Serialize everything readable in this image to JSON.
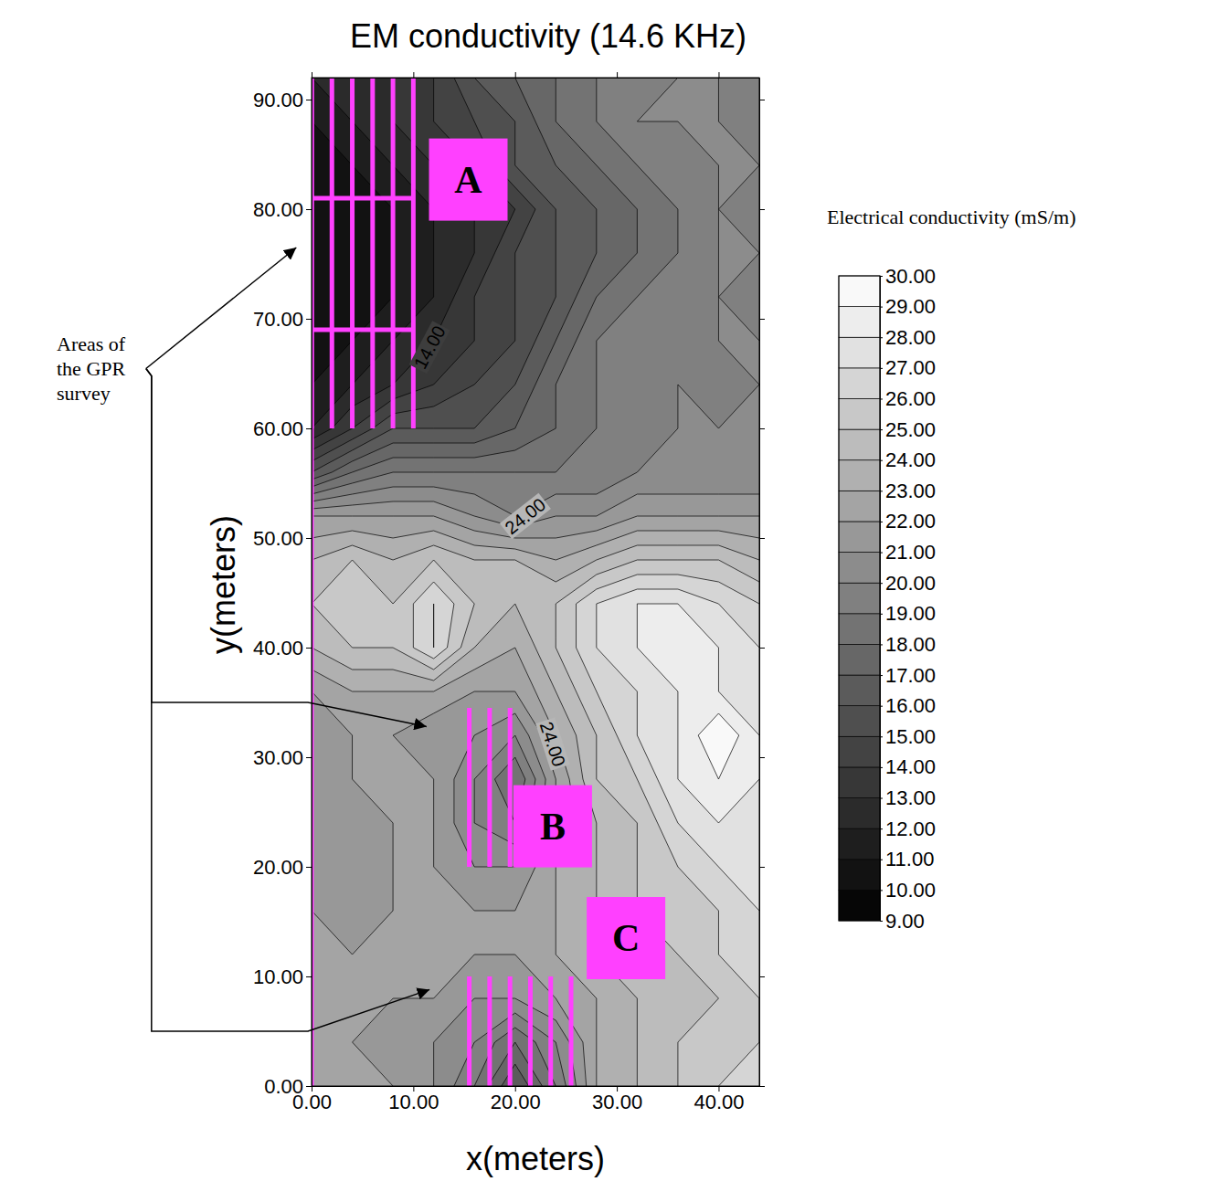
{
  "chart_data": {
    "type": "contour",
    "title": "EM conductivity (14.6 KHz)",
    "x_label": "x(meters)",
    "y_label": "y(meters)",
    "xlim": [
      0,
      44
    ],
    "ylim": [
      0,
      92
    ],
    "xticks": [
      {
        "value": 0,
        "label": "0.00"
      },
      {
        "value": 10,
        "label": "10.00"
      },
      {
        "value": 20,
        "label": "20.00"
      },
      {
        "value": 30,
        "label": "30.00"
      },
      {
        "value": 40,
        "label": "40.00"
      }
    ],
    "yticks": [
      {
        "value": 0,
        "label": "0.00"
      },
      {
        "value": 10,
        "label": "10.00"
      },
      {
        "value": 20,
        "label": "20.00"
      },
      {
        "value": 30,
        "label": "30.00"
      },
      {
        "value": 40,
        "label": "40.00"
      },
      {
        "value": 50,
        "label": "50.00"
      },
      {
        "value": 60,
        "label": "60.00"
      },
      {
        "value": 70,
        "label": "70.00"
      },
      {
        "value": 80,
        "label": "80.00"
      },
      {
        "value": 90,
        "label": "90.00"
      }
    ],
    "x": [
      0,
      4,
      8,
      12,
      16,
      20,
      24,
      28,
      32,
      36,
      40,
      44
    ],
    "y": [
      0,
      4,
      8,
      12,
      16,
      20,
      24,
      28,
      32,
      36,
      40,
      44,
      48,
      52,
      56,
      60,
      64,
      68,
      72,
      76,
      80,
      84,
      88,
      92
    ],
    "z": [
      [
        22,
        22,
        22,
        21,
        19,
        16,
        19,
        23,
        24,
        25,
        26,
        26
      ],
      [
        22,
        22,
        21,
        21,
        20,
        18,
        20,
        23,
        24,
        25,
        25,
        26
      ],
      [
        23,
        22,
        22,
        22,
        21,
        21,
        22,
        23,
        24,
        24,
        25,
        26
      ],
      [
        22,
        22,
        22,
        23,
        22,
        22,
        23,
        24,
        24,
        25,
        26,
        26
      ],
      [
        22,
        21,
        22,
        22,
        22,
        22,
        23,
        24,
        25,
        25,
        26,
        27
      ],
      [
        21,
        21,
        22,
        22,
        21,
        21,
        23,
        24,
        25,
        26,
        27,
        27
      ],
      [
        21,
        21,
        22,
        22,
        20,
        19,
        22,
        24,
        25,
        27,
        28,
        27
      ],
      [
        21,
        22,
        22,
        22,
        20,
        18,
        22,
        25,
        26,
        28,
        29,
        28
      ],
      [
        21,
        22,
        22,
        21,
        21,
        20,
        23,
        25,
        27,
        28,
        30,
        28
      ],
      [
        22,
        23,
        23,
        23,
        22,
        22,
        24,
        26,
        27,
        28,
        28,
        27
      ],
      [
        24,
        25,
        25,
        27,
        24,
        23,
        25,
        27,
        28,
        29,
        28,
        27
      ],
      [
        25,
        26,
        25,
        27,
        25,
        24,
        25,
        27,
        28,
        28,
        27,
        26
      ],
      [
        24,
        25,
        24,
        25,
        24,
        24,
        23,
        24,
        25,
        25,
        25,
        24
      ],
      [
        22,
        22,
        22,
        22,
        21,
        20,
        21,
        21,
        22,
        22,
        22,
        22
      ],
      [
        16,
        18,
        19,
        19,
        19,
        19,
        19,
        19,
        20,
        20,
        20,
        20
      ],
      [
        12,
        14,
        16,
        16,
        16,
        17,
        18,
        19,
        19,
        20,
        20,
        20
      ],
      [
        11,
        12,
        13,
        14,
        15,
        16,
        18,
        19,
        19,
        20,
        19,
        20
      ],
      [
        10,
        11,
        12,
        13,
        14,
        15,
        17,
        19,
        20,
        19,
        20,
        20
      ],
      [
        10,
        10,
        11,
        12,
        14,
        15,
        16,
        18,
        19,
        19,
        20,
        19
      ],
      [
        10,
        10,
        11,
        12,
        13,
        15,
        16,
        17,
        18,
        19,
        20,
        20
      ],
      [
        10,
        10,
        11,
        12,
        13,
        14,
        16,
        17,
        18,
        19,
        20,
        19
      ],
      [
        10,
        11,
        12,
        13,
        14,
        16,
        17,
        18,
        19,
        19,
        20,
        20
      ],
      [
        11,
        12,
        13,
        14,
        15,
        16,
        18,
        19,
        20,
        20,
        20,
        19
      ],
      [
        12,
        12,
        13,
        14,
        16,
        17,
        18,
        19,
        19,
        20,
        20,
        19
      ]
    ],
    "colorbar": {
      "title": "Electrical conductivity (mS/m)",
      "range": [
        9,
        30
      ],
      "ticks": [
        {
          "value": 9,
          "label": "9.00"
        },
        {
          "value": 10,
          "label": "10.00"
        },
        {
          "value": 11,
          "label": "11.00"
        },
        {
          "value": 12,
          "label": "12.00"
        },
        {
          "value": 13,
          "label": "13.00"
        },
        {
          "value": 14,
          "label": "14.00"
        },
        {
          "value": 15,
          "label": "15.00"
        },
        {
          "value": 16,
          "label": "16.00"
        },
        {
          "value": 17,
          "label": "17.00"
        },
        {
          "value": 18,
          "label": "18.00"
        },
        {
          "value": 19,
          "label": "19.00"
        },
        {
          "value": 20,
          "label": "20.00"
        },
        {
          "value": 21,
          "label": "21.00"
        },
        {
          "value": 22,
          "label": "22.00"
        },
        {
          "value": 23,
          "label": "23.00"
        },
        {
          "value": 24,
          "label": "24.00"
        },
        {
          "value": 25,
          "label": "25.00"
        },
        {
          "value": 26,
          "label": "26.00"
        },
        {
          "value": 27,
          "label": "27.00"
        },
        {
          "value": 28,
          "label": "28.00"
        },
        {
          "value": 29,
          "label": "29.00"
        },
        {
          "value": 30,
          "label": "30.00"
        }
      ]
    },
    "contour_labels": [
      {
        "value": 14,
        "label": "14.00",
        "x": 11.6,
        "y": 67.4
      },
      {
        "value": 24,
        "label": "24.00",
        "x": 21,
        "y": 52
      },
      {
        "value": 24,
        "label": "24.00",
        "x": 23.7,
        "y": 31.2
      }
    ],
    "profile_line": {
      "x": 0,
      "y_range": [
        0,
        92
      ]
    },
    "gpr_areas": [
      {
        "label": "A",
        "lines_x": [
          0,
          2,
          4,
          6,
          8,
          10
        ],
        "y_range": [
          60,
          92
        ],
        "cross_y": [
          69,
          81
        ],
        "x_range": [
          0,
          10
        ],
        "label_x": 15.4,
        "label_y": 82.7
      },
      {
        "label": "B",
        "lines_x": [
          15.5,
          17.5,
          19.5
        ],
        "y_range": [
          20,
          34.5
        ],
        "cross_y": [],
        "x_range": [
          15.5,
          19.5
        ],
        "label_x": 23.7,
        "label_y": 23.7
      },
      {
        "label": "C",
        "lines_x": [
          15.5,
          17.5,
          19.5,
          21.5,
          23.5,
          25.5
        ],
        "y_range": [
          0,
          10
        ],
        "cross_y": [],
        "x_range": [
          15.5,
          25.5
        ],
        "label_x": 30.9,
        "label_y": 13.5
      }
    ],
    "annotation": {
      "text": "Areas of the GPR survey",
      "targets": [
        [
          -1.5,
          76.5
        ],
        [
          11.3,
          32.8
        ],
        [
          11.6,
          8.8
        ]
      ]
    }
  }
}
